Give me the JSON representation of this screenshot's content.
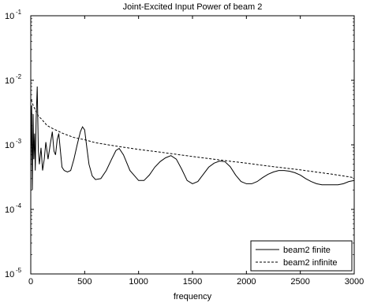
{
  "chart_data": {
    "type": "line",
    "title": "Joint-Excited Input Power of beam 2",
    "xlabel": "frequency",
    "ylabel": "",
    "xlim": [
      0,
      3000
    ],
    "ylim": [
      1e-05,
      0.1
    ],
    "yscale": "log",
    "grid": false,
    "legend_position": "bottom-right",
    "x_ticks": [
      "0",
      "500",
      "1000",
      "1500",
      "2000",
      "2500",
      "3000"
    ],
    "y_ticks": [
      {
        "base": "10",
        "exp": "-1"
      },
      {
        "base": "10",
        "exp": "-2"
      },
      {
        "base": "10",
        "exp": "-3"
      },
      {
        "base": "10",
        "exp": "-4"
      },
      {
        "base": "10",
        "exp": "-5"
      }
    ],
    "series": [
      {
        "name": "beam2 finite",
        "style": "solid",
        "color": "#000000",
        "x": [
          0,
          8,
          15,
          22,
          28,
          35,
          42,
          50,
          60,
          70,
          80,
          95,
          110,
          125,
          140,
          160,
          180,
          200,
          215,
          230,
          245,
          260,
          275,
          290,
          310,
          340,
          370,
          400,
          430,
          460,
          480,
          500,
          520,
          540,
          570,
          600,
          650,
          700,
          750,
          790,
          820,
          860,
          920,
          1000,
          1050,
          1100,
          1150,
          1200,
          1250,
          1300,
          1350,
          1400,
          1450,
          1500,
          1550,
          1600,
          1650,
          1700,
          1750,
          1800,
          1850,
          1900,
          1950,
          2000,
          2050,
          2100,
          2150,
          2200,
          2250,
          2300,
          2350,
          2400,
          2450,
          2500,
          2550,
          2600,
          2650,
          2700,
          2750,
          2800,
          2850,
          2900,
          2950,
          3000
        ],
        "values": [
          0.0004,
          0.004,
          0.0002,
          0.003,
          0.0006,
          0.0015,
          0.0004,
          0.0025,
          0.008,
          0.0008,
          0.0005,
          0.0009,
          0.0004,
          0.0006,
          0.0011,
          0.0006,
          0.001,
          0.0016,
          0.0008,
          0.0007,
          0.0012,
          0.0015,
          0.0008,
          0.00045,
          0.0004,
          0.00038,
          0.0004,
          0.0006,
          0.001,
          0.0016,
          0.0019,
          0.0017,
          0.0009,
          0.0005,
          0.00033,
          0.00029,
          0.0003,
          0.0004,
          0.0006,
          0.00082,
          0.00088,
          0.0007,
          0.0004,
          0.00028,
          0.00028,
          0.00034,
          0.00045,
          0.00055,
          0.00063,
          0.00068,
          0.0006,
          0.00042,
          0.00028,
          0.00025,
          0.00027,
          0.00035,
          0.00045,
          0.00052,
          0.00056,
          0.00055,
          0.00046,
          0.00034,
          0.00027,
          0.00025,
          0.00025,
          0.00027,
          0.00031,
          0.00035,
          0.00038,
          0.0004,
          0.0004,
          0.00039,
          0.00037,
          0.00034,
          0.0003,
          0.00027,
          0.00025,
          0.00024,
          0.00024,
          0.00024,
          0.00024,
          0.00025,
          0.00027,
          0.00028
        ]
      },
      {
        "name": "beam2 infinite",
        "style": "dashed",
        "color": "#000000",
        "x": [
          5,
          20,
          40,
          70,
          100,
          150,
          200,
          300,
          400,
          500,
          600,
          800,
          1000,
          1200,
          1500,
          1800,
          2000,
          2200,
          2500,
          2800,
          3000
        ],
        "values": [
          0.005,
          0.0042,
          0.0035,
          0.0028,
          0.0025,
          0.002,
          0.0018,
          0.0015,
          0.0013,
          0.0012,
          0.00108,
          0.00095,
          0.00085,
          0.00077,
          0.00066,
          0.00057,
          0.00052,
          0.00047,
          0.00041,
          0.00035,
          0.00031
        ]
      }
    ]
  }
}
